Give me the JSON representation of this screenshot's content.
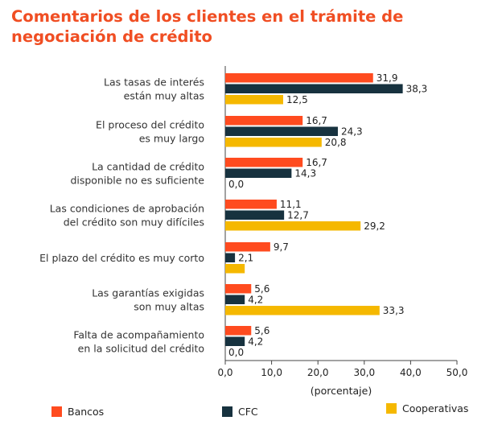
{
  "title": "Comentarios de los clientes en el trámite de negociación de crédito",
  "chart_data": {
    "type": "bar",
    "orientation": "horizontal",
    "title": "Comentarios de los clientes en el trámite de negociación de crédito",
    "xlabel": "(porcentaje)",
    "ylabel": "",
    "xlim": [
      0,
      50
    ],
    "xticks": [
      "0,0",
      "10,0",
      "20,0",
      "30,0",
      "40,0",
      "50,0"
    ],
    "legend_position": "bottom",
    "categories": [
      [
        "Las tasas de interés",
        "están muy altas"
      ],
      [
        "El proceso del crédito",
        "es muy largo"
      ],
      [
        "La cantidad de crédito",
        "disponible no es suficiente"
      ],
      [
        "Las condiciones de aprobación",
        "del crédito son muy difíciles"
      ],
      [
        "El plazo del crédito es muy corto"
      ],
      [
        "Las garantías exigidas",
        "son muy altas"
      ],
      [
        "Falta de acompañamiento",
        "en la solicitud del crédito"
      ]
    ],
    "series": [
      {
        "name": "Bancos",
        "color": "#ff4b1f",
        "values": [
          31.9,
          16.7,
          16.7,
          11.1,
          9.7,
          5.6,
          5.6
        ],
        "labels": [
          "31,9",
          "16,7",
          "16,7",
          "11,1",
          "9,7",
          "5,6",
          "5,6"
        ]
      },
      {
        "name": "CFC",
        "color": "#17323f",
        "values": [
          38.3,
          24.3,
          14.3,
          12.7,
          2.1,
          4.2,
          4.2
        ],
        "labels": [
          "38,3",
          "24,3",
          "14,3",
          "12,7",
          "2,1",
          "4,2",
          "4,2"
        ]
      },
      {
        "name": "Cooperativas",
        "color": "#f5b800",
        "values": [
          12.5,
          20.8,
          0.0,
          29.2,
          4.2,
          33.3,
          0.0
        ],
        "labels": [
          "12,5",
          "20,8",
          "0,0",
          "29,2",
          "",
          "33,3",
          "0,0"
        ]
      }
    ]
  }
}
